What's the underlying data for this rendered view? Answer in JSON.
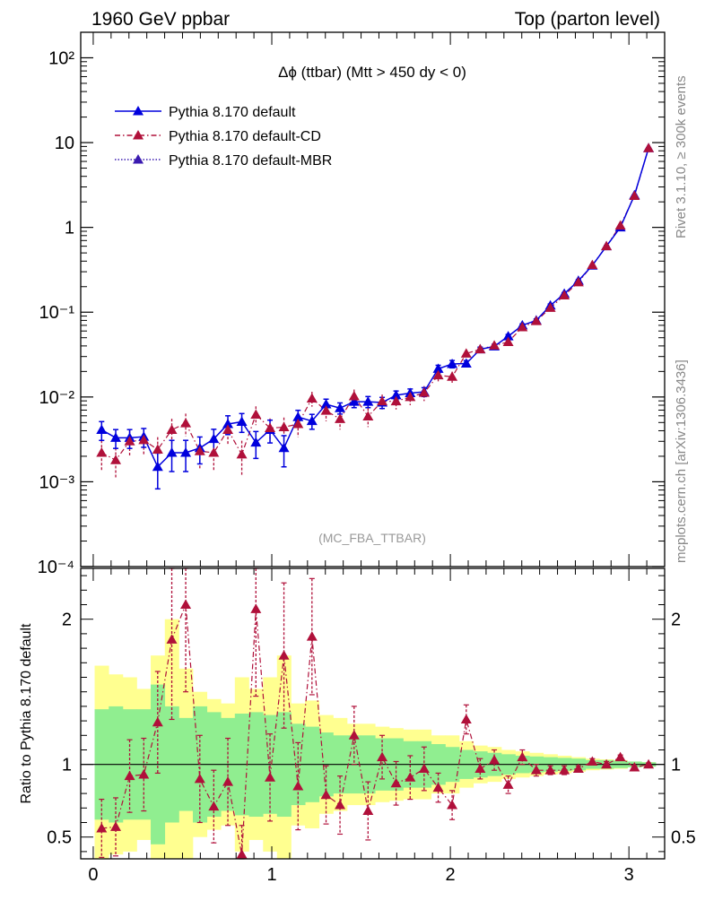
{
  "header": {
    "left": "1960 GeV ppbar",
    "right": "Top (parton level)"
  },
  "side_text": {
    "rivet": "Rivet 3.1.10, ≥ 300k events",
    "mcplots": "mcplots.cern.ch [arXiv:1306.3436]"
  },
  "colors": {
    "default": "#0000dd",
    "cd": "#b0103a",
    "mbr": "#3a1ab0",
    "band_inner": "#90ee90",
    "band_outer": "#ffff90"
  },
  "chart_data": [
    {
      "type": "scatter",
      "title": "Δϕ (ttbar) (Mtt > 450 dy < 0)",
      "watermark": "(MC_FBA_TTBAR)",
      "xlim": [
        -0.07,
        3.2
      ],
      "ylim": [
        0.0001,
        200
      ],
      "yscale": "log",
      "x_ticks": [
        "0",
        "1",
        "2",
        "3"
      ],
      "y_tick_labels": [
        "10⁻⁴",
        "10⁻³",
        "10⁻²",
        "10⁻¹",
        "1",
        "10",
        "10²"
      ],
      "legend_position": "top-left",
      "x": [
        0.047,
        0.126,
        0.204,
        0.283,
        0.361,
        0.44,
        0.518,
        0.597,
        0.675,
        0.754,
        0.832,
        0.911,
        0.99,
        1.068,
        1.147,
        1.225,
        1.304,
        1.382,
        1.461,
        1.539,
        1.618,
        1.696,
        1.775,
        1.853,
        1.932,
        2.01,
        2.089,
        2.167,
        2.246,
        2.324,
        2.403,
        2.481,
        2.56,
        2.638,
        2.717,
        2.795,
        2.874,
        2.952,
        3.031,
        3.11
      ],
      "series": [
        {
          "name": "Pythia 8.170 default",
          "marker": "triangle",
          "line": "solid",
          "values": [
            0.0041,
            0.0033,
            0.0033,
            0.0034,
            0.0015,
            0.0022,
            0.0022,
            0.0025,
            0.0032,
            0.0048,
            0.0051,
            0.0029,
            0.0041,
            0.0025,
            0.0058,
            0.0052,
            0.0082,
            0.0074,
            0.0088,
            0.0088,
            0.0086,
            0.0105,
            0.0111,
            0.0115,
            0.0215,
            0.0245,
            0.0248,
            0.0365,
            0.0395,
            0.052,
            0.07,
            0.08,
            0.12,
            0.165,
            0.235,
            0.355,
            0.6,
            1.0,
            2.4,
            8.6
          ],
          "err_rel": [
            0.25,
            0.25,
            0.25,
            0.25,
            0.45,
            0.4,
            0.4,
            0.35,
            0.3,
            0.25,
            0.25,
            0.35,
            0.3,
            0.4,
            0.2,
            0.2,
            0.15,
            0.15,
            0.15,
            0.15,
            0.15,
            0.12,
            0.12,
            0.12,
            0.1,
            0.1,
            0.08,
            0.06,
            0.06,
            0.05,
            0.04,
            0.04,
            0.04,
            0.03,
            0.03,
            0.02,
            0.02,
            0.02,
            0.01,
            0.01
          ]
        },
        {
          "name": "Pythia 8.170 default-CD",
          "marker": "triangle",
          "line": "dashdot",
          "values": [
            0.0022,
            0.0018,
            0.003,
            0.0031,
            0.0024,
            0.0041,
            0.0049,
            0.0023,
            0.0022,
            0.0041,
            0.0021,
            0.0062,
            0.0043,
            0.0044,
            0.0048,
            0.0096,
            0.0069,
            0.0055,
            0.0102,
            0.0059,
            0.0089,
            0.0089,
            0.01,
            0.0112,
            0.018,
            0.0173,
            0.0325,
            0.0365,
            0.0405,
            0.0445,
            0.0665,
            0.0785,
            0.1125,
            0.158,
            0.225,
            0.36,
            0.6,
            1.05,
            2.35,
            8.6
          ],
          "err_rel": [
            0.4,
            0.4,
            0.35,
            0.35,
            0.4,
            0.35,
            0.3,
            0.4,
            0.4,
            0.35,
            0.45,
            0.25,
            0.3,
            0.3,
            0.3,
            0.2,
            0.25,
            0.25,
            0.2,
            0.25,
            0.2,
            0.2,
            0.2,
            0.2,
            0.15,
            0.15,
            0.12,
            0.1,
            0.1,
            0.1,
            0.08,
            0.07,
            0.06,
            0.05,
            0.04,
            0.03,
            0.03,
            0.02,
            0.02,
            0.01
          ]
        },
        {
          "name": "Pythia 8.170 default-MBR",
          "marker": "triangle",
          "line": "dotted",
          "values": []
        }
      ]
    },
    {
      "type": "scatter",
      "ylabel": "Ratio to Pythia 8.170 default",
      "xlim": [
        -0.07,
        3.2
      ],
      "ylim": [
        0.35,
        2.35
      ],
      "y_ticks": [
        "0.5",
        "1",
        "2"
      ],
      "band_outer_halfwidth": [
        0.68,
        0.62,
        0.6,
        0.52,
        0.75,
        1.0,
        0.66,
        0.5,
        0.45,
        0.42,
        0.6,
        0.52,
        0.6,
        0.75,
        0.42,
        0.44,
        0.34,
        0.32,
        0.28,
        0.28,
        0.26,
        0.25,
        0.24,
        0.24,
        0.2,
        0.2,
        0.16,
        0.13,
        0.12,
        0.1,
        0.09,
        0.08,
        0.07,
        0.06,
        0.05,
        0.04,
        0.035,
        0.03,
        0.02,
        0.015
      ],
      "band_inner_halfwidth": [
        0.38,
        0.4,
        0.38,
        0.38,
        0.55,
        0.4,
        0.32,
        0.4,
        0.36,
        0.32,
        0.35,
        0.36,
        0.34,
        0.36,
        0.28,
        0.26,
        0.22,
        0.2,
        0.2,
        0.2,
        0.18,
        0.18,
        0.16,
        0.16,
        0.14,
        0.12,
        0.1,
        0.09,
        0.08,
        0.07,
        0.06,
        0.055,
        0.05,
        0.045,
        0.04,
        0.03,
        0.03,
        0.025,
        0.02,
        0.015
      ],
      "ratio_cd": [
        0.56,
        0.57,
        0.92,
        0.93,
        1.29,
        1.86,
        2.1,
        0.9,
        0.71,
        0.88,
        0.38,
        2.07,
        0.91,
        1.75,
        0.85,
        1.88,
        0.79,
        0.72,
        1.2,
        0.68,
        1.05,
        0.87,
        0.91,
        0.97,
        0.84,
        0.72,
        1.31,
        0.97,
        1.03,
        0.86,
        1.05,
        0.96,
        0.96,
        0.96,
        0.97,
        1.02,
        1.0,
        1.05,
        0.98,
        1.0
      ],
      "ratio_cd_err": [
        0.2,
        0.2,
        0.25,
        0.25,
        0.35,
        0.55,
        0.6,
        0.3,
        0.25,
        0.3,
        0.2,
        0.6,
        0.3,
        0.5,
        0.3,
        0.4,
        0.2,
        0.2,
        0.2,
        0.2,
        0.15,
        0.15,
        0.15,
        0.15,
        0.1,
        0.1,
        0.1,
        0.07,
        0.07,
        0.06,
        0.05,
        0.04,
        0.03,
        0.03,
        0.02,
        0.02,
        0.02,
        0.015,
        0.01,
        0.01
      ]
    }
  ]
}
